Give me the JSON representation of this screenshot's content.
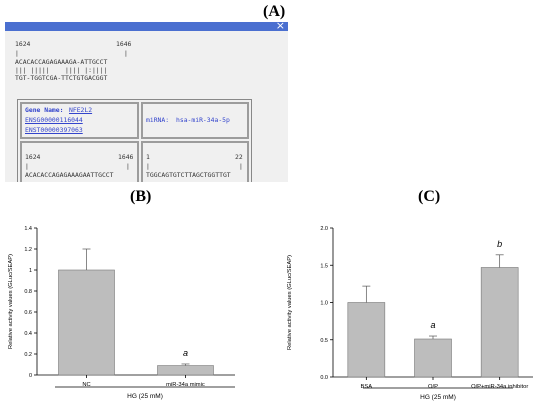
{
  "panels": {
    "a_letter": "(A)",
    "b_letter": "(B)",
    "c_letter": "(C)"
  },
  "alignment": {
    "close_glyph": "×",
    "top_start": "1624",
    "top_end": "1646",
    "seq_line_1": "ACACACCAGAGAAAGA-ATTGCCT",
    "match_line": "||| |||||    |||| |:||||",
    "seq_line_2": "TGT-TGGTCGA-TTCTGTGACGGT",
    "gene_label": "Gene Name:",
    "gene_name": "NFE2L2",
    "ensembl_1": "ENSG00000116044",
    "ensembl_2": "ENST00000397063",
    "mirna_label": "miRNA:",
    "mirna_name": "hsa-miR-34a-5p",
    "bottom_left_start": "1624",
    "bottom_left_end": "1646",
    "bottom_left_seq": "ACACACCAGAGAAAGAATTGCCT",
    "bottom_right_start": "1",
    "bottom_right_end": "22",
    "bottom_right_seq": "TGGCAGTGTCTTAGCTGGTTGT"
  },
  "chart_data": [
    {
      "type": "bar",
      "categories": [
        "NC",
        "miR-34a mimic"
      ],
      "values": [
        1.0,
        0.09
      ],
      "errors": [
        0.2,
        0.015
      ],
      "significance": [
        "",
        "a"
      ],
      "ylabel": "Relative activity values (GLuc/SEAP)",
      "xlabel": "HG (25 mM)",
      "ylim": [
        0,
        1.4
      ],
      "yticks": [
        "0",
        "0.2",
        "0.4",
        "0.6",
        "0.8",
        "1",
        "1.2",
        "1.4"
      ],
      "bar_color": "#bdbdbd"
    },
    {
      "type": "bar",
      "categories": [
        "BSA",
        "O/P",
        "O/P+miR-34a inhibitor"
      ],
      "values": [
        1.0,
        0.51,
        1.47
      ],
      "errors": [
        0.22,
        0.04,
        0.17
      ],
      "significance": [
        "",
        "a",
        "b"
      ],
      "ylabel": "Relative activity values (GLuc/SEAP)",
      "xlabel": "HG (25 mM)",
      "ylim": [
        0,
        2.0
      ],
      "yticks": [
        "0.0",
        "0.5",
        "1.0",
        "1.5",
        "2.0"
      ],
      "bar_color": "#bdbdbd"
    }
  ]
}
